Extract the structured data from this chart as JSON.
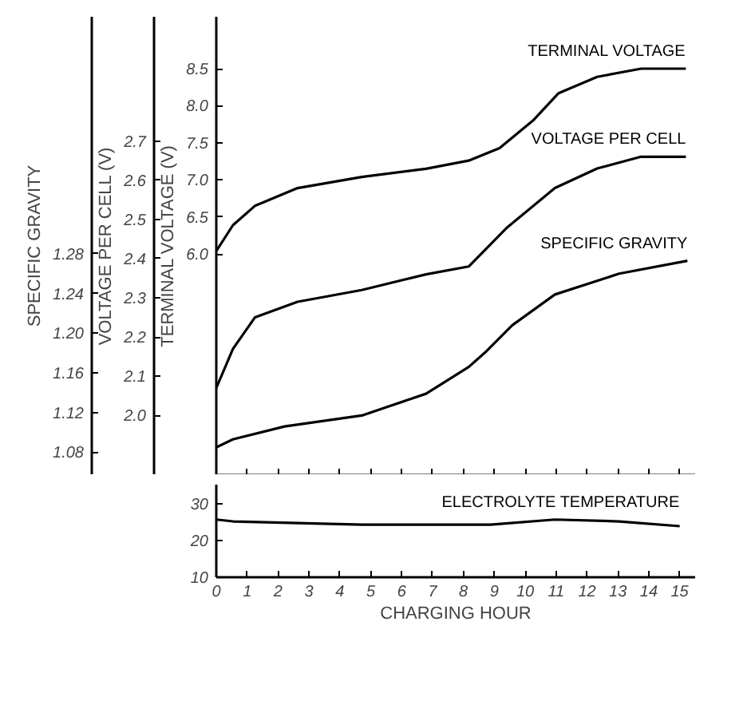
{
  "chart_data": [
    {
      "type": "line",
      "ylabel": "TERMINAL VOLTAGE (V)",
      "y2label": "VOLTAGE PER CELL (V)",
      "y3label": "SPECIFIC GRAVITY",
      "xlim": [
        0,
        15.5
      ],
      "xticks": [
        0,
        1,
        2,
        3,
        4,
        5,
        6,
        7,
        8,
        9,
        10,
        11,
        12,
        13,
        14,
        15
      ],
      "tick_labels": "y",
      "ylim": [
        3.02,
        9.2
      ],
      "yticks": [
        {
          "value": 6,
          "label": "6.0"
        },
        6.5,
        {
          "value": 7,
          "label": "7.0"
        },
        7.5,
        {
          "value": 8,
          "label": "8.0"
        },
        8.5
      ],
      "y2lim": [
        1.848,
        3.017
      ],
      "y2ticks": [
        {
          "value": 2,
          "label": "2.0"
        },
        2.1,
        2.2,
        2.3,
        2.4,
        2.5,
        2.6,
        2.7
      ],
      "y3lim": [
        1.057,
        1.519
      ],
      "y3ticks": [
        {
          "value": 1.08,
          "label": "1.08"
        },
        {
          "value": 1.12,
          "label": "1.12"
        },
        {
          "value": 1.16,
          "label": "1.16"
        },
        {
          "value": 1.2,
          "label": "1.20"
        },
        {
          "value": 1.24,
          "label": "1.24"
        },
        {
          "value": 1.28,
          "label": "1.28"
        }
      ],
      "grid": false,
      "marker": "none",
      "line_style": "solid",
      "series": [
        {
          "name": "TERMINAL VOLTAGE",
          "color": "#000000",
          "axis": "y",
          "x": [
            0,
            0.54,
            1.25,
            2.63,
            4.71,
            6.79,
            8.17,
            9.17,
            10.25,
            11.08,
            12.33,
            13.75,
            15.2
          ],
          "values": [
            6.04,
            6.39,
            6.65,
            6.89,
            7.04,
            7.15,
            7.26,
            7.43,
            7.8,
            8.17,
            8.39,
            8.5,
            8.5
          ]
        },
        {
          "name": "VOLTAGE PER CELL",
          "color": "#000000",
          "axis": "y2",
          "x": [
            0,
            0.54,
            1.25,
            2.63,
            4.71,
            6.79,
            8.17,
            9.42,
            10.96,
            12.33,
            13.75,
            15.2
          ],
          "values": [
            2.07,
            2.17,
            2.25,
            2.29,
            2.32,
            2.36,
            2.38,
            2.48,
            2.58,
            2.63,
            2.66,
            2.66
          ]
        },
        {
          "name": "SPECIFIC GRAVITY",
          "color": "#000000",
          "axis": "y3",
          "x": [
            0,
            0.54,
            2.21,
            4.71,
            6.79,
            8.17,
            8.75,
            9.58,
            10.96,
            13.04,
            15.25
          ],
          "values": [
            1.085,
            1.093,
            1.106,
            1.117,
            1.139,
            1.166,
            1.182,
            1.208,
            1.239,
            1.26,
            1.273
          ]
        }
      ]
    },
    {
      "type": "line",
      "xlabel": "CHARGING HOUR",
      "xlim": [
        0,
        15.5
      ],
      "xticks": [
        0,
        1,
        2,
        3,
        4,
        5,
        6,
        7,
        8,
        9,
        10,
        11,
        12,
        13,
        14,
        15
      ],
      "ylim": [
        10,
        35.2
      ],
      "yticks": [
        10,
        20,
        30
      ],
      "grid": false,
      "marker": "none",
      "line_style": "solid",
      "series": [
        {
          "name": "ELECTROLYTE TEMPERATURE",
          "color": "#000000",
          "x": [
            0,
            0.54,
            4.71,
            8.88,
            10.96,
            13.04,
            15
          ],
          "values": [
            25.7,
            25.2,
            24.3,
            24.3,
            25.7,
            25.2,
            23.9
          ]
        }
      ]
    }
  ]
}
